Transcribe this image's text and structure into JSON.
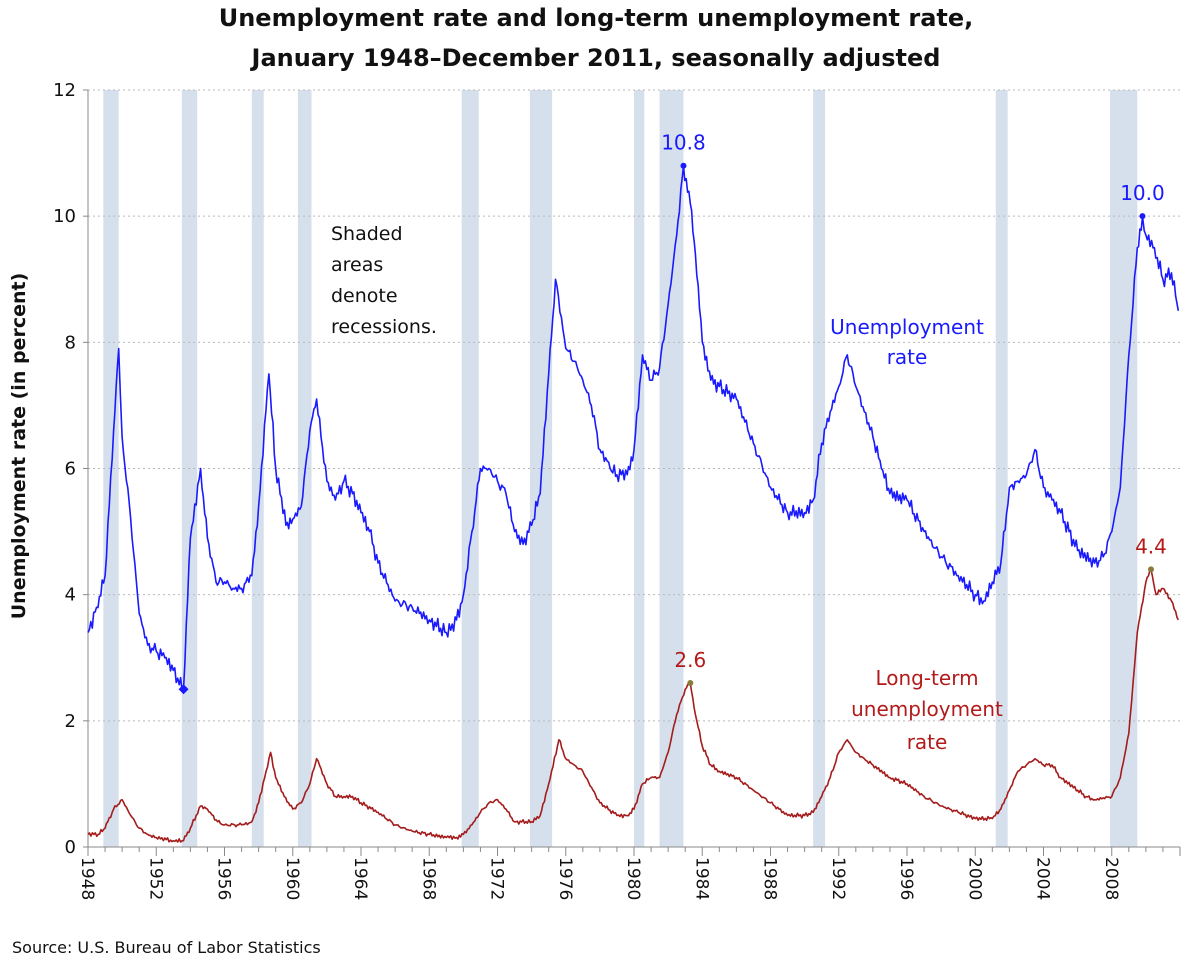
{
  "chart_data": {
    "type": "line",
    "title": [
      "Unemployment rate and long-term unemployment rate,",
      "January 1948–December 2011, seasonally adjusted"
    ],
    "ylabel": "Unemployment rate (in percent)",
    "xlabel": "",
    "ylim": [
      0,
      12
    ],
    "xlim": [
      1948.0,
      2012.0
    ],
    "yticks": [
      0,
      2,
      4,
      6,
      8,
      10,
      12
    ],
    "xtick_labels": [
      "1948",
      "1952",
      "1956",
      "1960",
      "1964",
      "1968",
      "1972",
      "1976",
      "1980",
      "1984",
      "1988",
      "1992",
      "1996",
      "2000",
      "2004",
      "2008"
    ],
    "grid": "horizontal dotted",
    "recessions": [
      [
        1948.9,
        1949.8
      ],
      [
        1953.5,
        1954.4
      ],
      [
        1957.6,
        1958.3
      ],
      [
        1960.3,
        1961.1
      ],
      [
        1969.9,
        1970.9
      ],
      [
        1973.9,
        1975.2
      ],
      [
        1980.0,
        1980.6
      ],
      [
        1981.5,
        1982.9
      ],
      [
        1990.5,
        1991.2
      ],
      [
        2001.2,
        2001.9
      ],
      [
        2007.9,
        2009.5
      ]
    ],
    "series": [
      {
        "name": "Unemployment rate",
        "color": "#1a1aff",
        "points": [
          [
            1948.0,
            3.4
          ],
          [
            1948.5,
            3.8
          ],
          [
            1949.0,
            4.3
          ],
          [
            1949.5,
            6.6
          ],
          [
            1949.8,
            7.9
          ],
          [
            1950.0,
            6.5
          ],
          [
            1950.5,
            5.2
          ],
          [
            1951.0,
            3.7
          ],
          [
            1951.5,
            3.2
          ],
          [
            1952.0,
            3.1
          ],
          [
            1952.5,
            3.0
          ],
          [
            1953.0,
            2.8
          ],
          [
            1953.6,
            2.5
          ],
          [
            1954.0,
            4.9
          ],
          [
            1954.6,
            6.0
          ],
          [
            1955.0,
            4.9
          ],
          [
            1955.5,
            4.2
          ],
          [
            1956.0,
            4.2
          ],
          [
            1956.5,
            4.1
          ],
          [
            1957.0,
            4.1
          ],
          [
            1957.6,
            4.3
          ],
          [
            1958.0,
            5.4
          ],
          [
            1958.6,
            7.5
          ],
          [
            1959.0,
            6.0
          ],
          [
            1959.6,
            5.1
          ],
          [
            1960.0,
            5.2
          ],
          [
            1960.5,
            5.4
          ],
          [
            1961.0,
            6.6
          ],
          [
            1961.4,
            7.1
          ],
          [
            1962.0,
            5.8
          ],
          [
            1962.5,
            5.5
          ],
          [
            1963.0,
            5.8
          ],
          [
            1963.5,
            5.6
          ],
          [
            1964.0,
            5.3
          ],
          [
            1964.5,
            5.0
          ],
          [
            1965.0,
            4.5
          ],
          [
            1966.0,
            3.9
          ],
          [
            1967.0,
            3.8
          ],
          [
            1968.0,
            3.6
          ],
          [
            1969.0,
            3.4
          ],
          [
            1969.6,
            3.6
          ],
          [
            1970.0,
            4.0
          ],
          [
            1970.5,
            5.0
          ],
          [
            1971.0,
            6.0
          ],
          [
            1971.5,
            6.0
          ],
          [
            1972.0,
            5.8
          ],
          [
            1972.5,
            5.6
          ],
          [
            1973.0,
            5.0
          ],
          [
            1973.5,
            4.8
          ],
          [
            1974.0,
            5.1
          ],
          [
            1974.5,
            5.6
          ],
          [
            1975.0,
            7.5
          ],
          [
            1975.4,
            9.0
          ],
          [
            1976.0,
            7.9
          ],
          [
            1976.5,
            7.7
          ],
          [
            1977.0,
            7.4
          ],
          [
            1977.5,
            7.0
          ],
          [
            1978.0,
            6.3
          ],
          [
            1978.6,
            6.0
          ],
          [
            1979.0,
            5.9
          ],
          [
            1979.6,
            5.9
          ],
          [
            1980.0,
            6.3
          ],
          [
            1980.5,
            7.8
          ],
          [
            1981.0,
            7.4
          ],
          [
            1981.5,
            7.6
          ],
          [
            1982.0,
            8.6
          ],
          [
            1982.5,
            9.7
          ],
          [
            1982.9,
            10.8
          ],
          [
            1983.3,
            10.2
          ],
          [
            1983.6,
            9.4
          ],
          [
            1984.0,
            8.0
          ],
          [
            1984.5,
            7.4
          ],
          [
            1985.0,
            7.3
          ],
          [
            1986.0,
            7.1
          ],
          [
            1987.0,
            6.4
          ],
          [
            1988.0,
            5.7
          ],
          [
            1989.0,
            5.3
          ],
          [
            1990.0,
            5.3
          ],
          [
            1990.5,
            5.5
          ],
          [
            1991.0,
            6.4
          ],
          [
            1991.5,
            6.9
          ],
          [
            1992.0,
            7.3
          ],
          [
            1992.5,
            7.8
          ],
          [
            1993.0,
            7.3
          ],
          [
            1993.5,
            6.9
          ],
          [
            1994.0,
            6.5
          ],
          [
            1994.5,
            6.0
          ],
          [
            1995.0,
            5.6
          ],
          [
            1996.0,
            5.5
          ],
          [
            1997.0,
            5.0
          ],
          [
            1998.0,
            4.6
          ],
          [
            1999.0,
            4.3
          ],
          [
            2000.0,
            4.0
          ],
          [
            2000.5,
            3.9
          ],
          [
            2001.0,
            4.2
          ],
          [
            2001.5,
            4.5
          ],
          [
            2002.0,
            5.7
          ],
          [
            2002.5,
            5.8
          ],
          [
            2003.0,
            5.9
          ],
          [
            2003.5,
            6.3
          ],
          [
            2004.0,
            5.7
          ],
          [
            2004.5,
            5.5
          ],
          [
            2005.0,
            5.3
          ],
          [
            2006.0,
            4.7
          ],
          [
            2007.0,
            4.5
          ],
          [
            2007.5,
            4.6
          ],
          [
            2008.0,
            5.0
          ],
          [
            2008.5,
            5.7
          ],
          [
            2009.0,
            7.8
          ],
          [
            2009.5,
            9.5
          ],
          [
            2009.8,
            10.0
          ],
          [
            2010.0,
            9.7
          ],
          [
            2010.5,
            9.5
          ],
          [
            2011.0,
            9.0
          ],
          [
            2011.5,
            9.1
          ],
          [
            2011.9,
            8.5
          ]
        ],
        "label": [
          "Unemployment",
          "rate"
        ]
      },
      {
        "name": "Long-term unemployment rate",
        "color": "#a51c1c",
        "points": [
          [
            1948.0,
            0.2
          ],
          [
            1948.6,
            0.2
          ],
          [
            1949.0,
            0.3
          ],
          [
            1949.5,
            0.6
          ],
          [
            1950.0,
            0.75
          ],
          [
            1950.5,
            0.5
          ],
          [
            1951.0,
            0.3
          ],
          [
            1951.5,
            0.2
          ],
          [
            1952.0,
            0.15
          ],
          [
            1953.0,
            0.1
          ],
          [
            1953.6,
            0.1
          ],
          [
            1954.0,
            0.3
          ],
          [
            1954.6,
            0.65
          ],
          [
            1955.0,
            0.6
          ],
          [
            1955.6,
            0.4
          ],
          [
            1956.0,
            0.35
          ],
          [
            1957.0,
            0.35
          ],
          [
            1957.6,
            0.4
          ],
          [
            1958.0,
            0.7
          ],
          [
            1958.7,
            1.5
          ],
          [
            1959.0,
            1.1
          ],
          [
            1959.5,
            0.8
          ],
          [
            1960.0,
            0.6
          ],
          [
            1960.5,
            0.7
          ],
          [
            1961.0,
            1.0
          ],
          [
            1961.4,
            1.4
          ],
          [
            1962.0,
            1.0
          ],
          [
            1962.5,
            0.8
          ],
          [
            1963.0,
            0.8
          ],
          [
            1963.5,
            0.8
          ],
          [
            1964.0,
            0.7
          ],
          [
            1965.0,
            0.55
          ],
          [
            1966.0,
            0.35
          ],
          [
            1967.0,
            0.25
          ],
          [
            1968.0,
            0.2
          ],
          [
            1969.0,
            0.15
          ],
          [
            1969.6,
            0.15
          ],
          [
            1970.0,
            0.2
          ],
          [
            1970.5,
            0.35
          ],
          [
            1971.0,
            0.55
          ],
          [
            1971.5,
            0.7
          ],
          [
            1972.0,
            0.75
          ],
          [
            1972.5,
            0.6
          ],
          [
            1973.0,
            0.4
          ],
          [
            1974.0,
            0.4
          ],
          [
            1974.5,
            0.5
          ],
          [
            1975.0,
            1.0
          ],
          [
            1975.6,
            1.7
          ],
          [
            1976.0,
            1.4
          ],
          [
            1976.5,
            1.3
          ],
          [
            1977.0,
            1.2
          ],
          [
            1977.6,
            0.9
          ],
          [
            1978.0,
            0.7
          ],
          [
            1979.0,
            0.5
          ],
          [
            1979.6,
            0.5
          ],
          [
            1980.0,
            0.6
          ],
          [
            1980.5,
            1.0
          ],
          [
            1981.0,
            1.1
          ],
          [
            1981.5,
            1.1
          ],
          [
            1982.0,
            1.5
          ],
          [
            1982.5,
            2.1
          ],
          [
            1983.0,
            2.5
          ],
          [
            1983.3,
            2.6
          ],
          [
            1983.6,
            2.1
          ],
          [
            1984.0,
            1.6
          ],
          [
            1984.5,
            1.3
          ],
          [
            1985.0,
            1.2
          ],
          [
            1986.0,
            1.1
          ],
          [
            1987.0,
            0.9
          ],
          [
            1988.0,
            0.7
          ],
          [
            1989.0,
            0.5
          ],
          [
            1990.0,
            0.5
          ],
          [
            1990.5,
            0.55
          ],
          [
            1991.0,
            0.8
          ],
          [
            1991.5,
            1.1
          ],
          [
            1992.0,
            1.5
          ],
          [
            1992.5,
            1.7
          ],
          [
            1993.0,
            1.5
          ],
          [
            1993.5,
            1.4
          ],
          [
            1994.0,
            1.3
          ],
          [
            1995.0,
            1.1
          ],
          [
            1996.0,
            1.0
          ],
          [
            1997.0,
            0.8
          ],
          [
            1998.0,
            0.65
          ],
          [
            1999.0,
            0.55
          ],
          [
            2000.0,
            0.45
          ],
          [
            2001.0,
            0.45
          ],
          [
            2001.5,
            0.6
          ],
          [
            2002.0,
            0.9
          ],
          [
            2002.5,
            1.2
          ],
          [
            2003.0,
            1.3
          ],
          [
            2003.5,
            1.4
          ],
          [
            2004.0,
            1.3
          ],
          [
            2004.5,
            1.3
          ],
          [
            2005.0,
            1.1
          ],
          [
            2006.0,
            0.9
          ],
          [
            2006.5,
            0.8
          ],
          [
            2007.0,
            0.75
          ],
          [
            2008.0,
            0.8
          ],
          [
            2008.5,
            1.1
          ],
          [
            2009.0,
            1.8
          ],
          [
            2009.5,
            3.4
          ],
          [
            2010.0,
            4.2
          ],
          [
            2010.3,
            4.4
          ],
          [
            2010.6,
            4.0
          ],
          [
            2011.0,
            4.1
          ],
          [
            2011.5,
            3.9
          ],
          [
            2011.9,
            3.6
          ]
        ],
        "label": [
          "Long-term",
          "unemployment",
          "rate"
        ]
      }
    ],
    "annotations": [
      {
        "text": "10.8",
        "x": 1982.9,
        "y": 10.8,
        "series": 0
      },
      {
        "text": "10.0",
        "x": 2009.8,
        "y": 10.0,
        "series": 0
      },
      {
        "text": "2.6",
        "x": 1983.3,
        "y": 2.6,
        "series": 1
      },
      {
        "text": "4.4",
        "x": 2010.3,
        "y": 4.4,
        "series": 1
      }
    ],
    "trough_marker": {
      "x": 1953.6,
      "y": 2.5,
      "series": 0
    },
    "note": [
      "Shaded",
      "areas",
      "denote",
      "recessions."
    ],
    "source": "Source: U.S. Bureau of Labor Statistics"
  }
}
